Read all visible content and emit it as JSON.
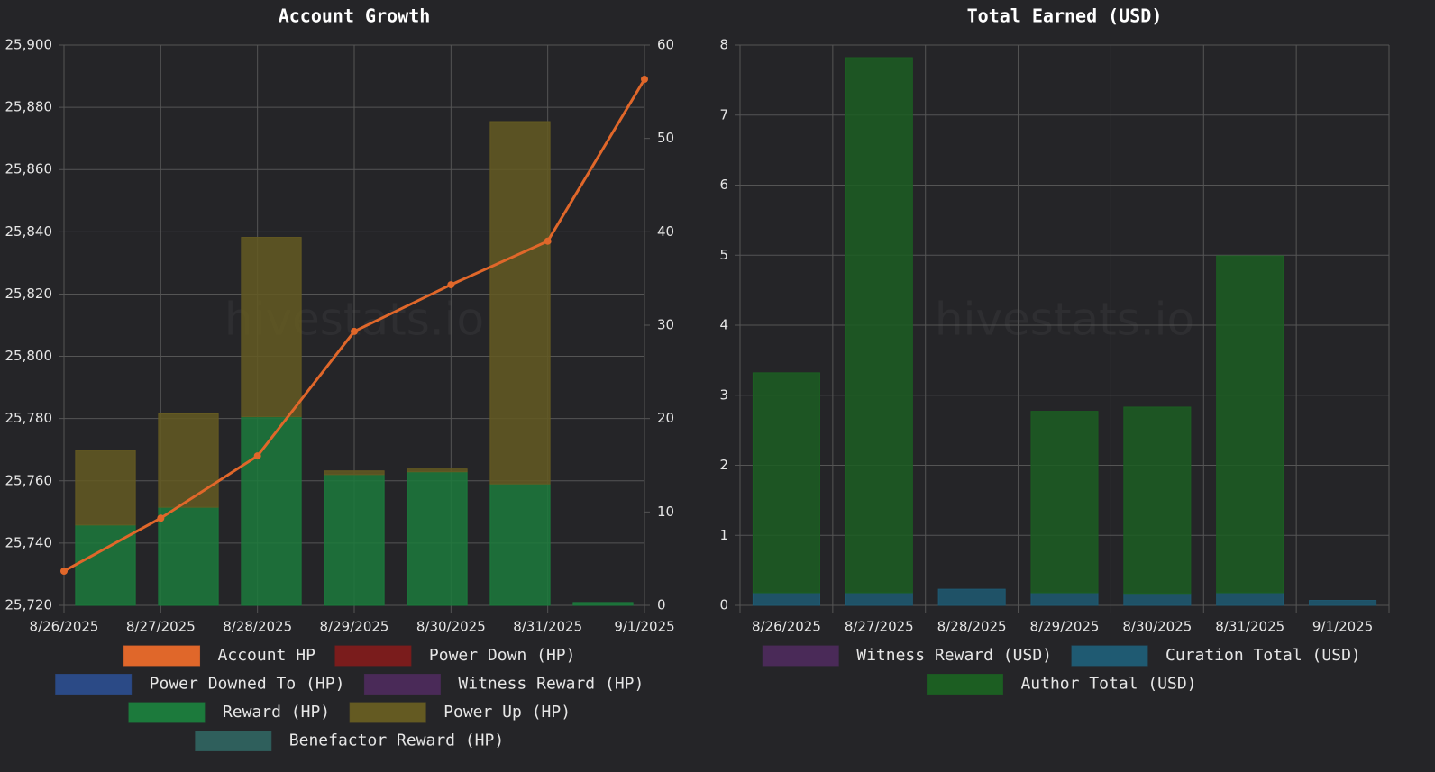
{
  "chart_data": [
    {
      "type": "bar",
      "title": "Account Growth",
      "watermark": "hivestats.io",
      "stacked": true,
      "grid": true,
      "categories": [
        "8/26/2025",
        "8/27/2025",
        "8/28/2025",
        "8/29/2025",
        "8/30/2025",
        "8/31/2025",
        "9/1/2025"
      ],
      "ylim": [
        25720,
        25900
      ],
      "yticks": [
        {
          "value": 25720,
          "label": "25,720"
        },
        {
          "value": 25740,
          "label": "25,740"
        },
        {
          "value": 25760,
          "label": "25,760"
        },
        {
          "value": 25780,
          "label": "25,780"
        },
        {
          "value": 25800,
          "label": "25,800"
        },
        {
          "value": 25820,
          "label": "25,820"
        },
        {
          "value": 25840,
          "label": "25,840"
        },
        {
          "value": 25860,
          "label": "25,860"
        },
        {
          "value": 25880,
          "label": "25,880"
        },
        {
          "value": 25900,
          "label": "25,900"
        }
      ],
      "y2lim": [
        0,
        60
      ],
      "y2ticks": [
        0,
        10,
        20,
        30,
        40,
        50,
        60
      ],
      "series": [
        {
          "name": "Account HP",
          "type": "line",
          "color": "#e0672a",
          "values": [
            25731,
            25748,
            25768,
            25808,
            25823,
            25837,
            25889
          ]
        },
        {
          "name": "Power Down (HP)",
          "axis": "y2",
          "color": "#7a1c1c",
          "values": [
            0,
            0,
            0,
            0,
            0,
            0,
            0
          ]
        },
        {
          "name": "Power Downed To (HP)",
          "axis": "y2",
          "color": "#2b4a86",
          "values": [
            0,
            0,
            0,
            0,
            0,
            0,
            0
          ]
        },
        {
          "name": "Witness Reward (HP)",
          "axis": "y2",
          "color": "#4a2a58",
          "values": [
            0,
            0,
            0,
            0,
            0,
            0,
            0
          ]
        },
        {
          "name": "Reward (HP)",
          "axis": "y2",
          "color": "#1c7a3c",
          "values": [
            8.6,
            10.5,
            20.2,
            14.0,
            14.3,
            13.0,
            0.3
          ]
        },
        {
          "name": "Power Up (HP)",
          "axis": "y2",
          "color": "#645a22",
          "values": [
            8.0,
            10.0,
            19.2,
            0.4,
            0.3,
            38.8,
            0
          ]
        },
        {
          "name": "Benefactor Reward (HP)",
          "axis": "y2",
          "color": "#2f5f5c",
          "values": [
            0,
            0,
            0,
            0,
            0,
            0,
            0
          ]
        }
      ]
    },
    {
      "type": "bar",
      "title": "Total Earned (USD)",
      "watermark": "hivestats.io",
      "stacked": true,
      "grid": true,
      "categories": [
        "8/26/2025",
        "8/27/2025",
        "8/28/2025",
        "8/29/2025",
        "8/30/2025",
        "8/31/2025",
        "9/1/2025"
      ],
      "ylim": [
        0,
        8
      ],
      "yticks": [
        0,
        1,
        2,
        3,
        4,
        5,
        6,
        7,
        8
      ],
      "series": [
        {
          "name": "Witness Reward (USD)",
          "color": "#4a2a58",
          "values": [
            0,
            0,
            0,
            0,
            0,
            0,
            0
          ]
        },
        {
          "name": "Curation Total (USD)",
          "color": "#1f5a72",
          "values": [
            0.18,
            0.18,
            0.23,
            0.18,
            0.17,
            0.18,
            0.07
          ]
        },
        {
          "name": "Author Total (USD)",
          "color": "#1c5e22",
          "values": [
            3.14,
            7.64,
            0,
            2.59,
            2.66,
            4.81,
            0
          ]
        }
      ]
    }
  ]
}
